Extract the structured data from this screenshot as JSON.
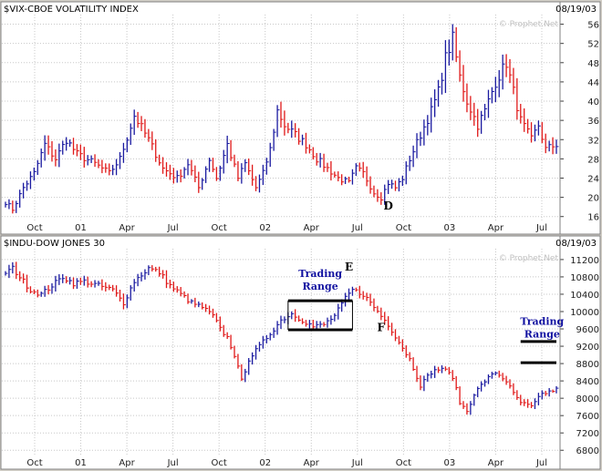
{
  "chart_data": [
    {
      "type": "ohlc",
      "title": "$VIX-CBOE VOLATILITY INDEX",
      "date": "08/19/03",
      "watermark": "© Prophet.Net",
      "x_tick_labels": [
        "Oct",
        "01",
        "Apr",
        "Jul",
        "Oct",
        "02",
        "Apr",
        "Jul",
        "Oct",
        "03",
        "Apr",
        "Jul"
      ],
      "y_ticks": [
        16,
        20,
        24,
        28,
        32,
        36,
        40,
        44,
        48,
        52,
        56
      ],
      "ylim": [
        15,
        58
      ],
      "bar_count": 155,
      "anchors": [
        [
          0,
          19
        ],
        [
          2,
          17.5
        ],
        [
          5,
          22
        ],
        [
          8,
          25
        ],
        [
          11,
          31
        ],
        [
          14,
          28
        ],
        [
          17,
          32
        ],
        [
          20,
          29
        ],
        [
          25,
          27
        ],
        [
          29,
          25
        ],
        [
          32,
          28
        ],
        [
          36,
          37
        ],
        [
          40,
          32
        ],
        [
          44,
          26
        ],
        [
          48,
          24
        ],
        [
          51,
          27
        ],
        [
          54,
          22
        ],
        [
          57,
          28
        ],
        [
          59,
          24
        ],
        [
          62,
          31
        ],
        [
          65,
          24
        ],
        [
          67,
          27
        ],
        [
          70,
          22
        ],
        [
          72,
          25
        ],
        [
          74,
          30
        ],
        [
          76,
          38
        ],
        [
          78,
          35
        ],
        [
          81,
          33
        ],
        [
          84,
          31
        ],
        [
          87,
          28
        ],
        [
          90,
          26
        ],
        [
          93,
          24
        ],
        [
          96,
          23
        ],
        [
          98,
          26
        ],
        [
          100,
          25
        ],
        [
          103,
          21
        ],
        [
          105,
          20
        ],
        [
          107,
          23
        ],
        [
          109,
          22
        ],
        [
          111,
          24
        ],
        [
          113,
          28
        ],
        [
          116,
          33
        ],
        [
          119,
          38
        ],
        [
          121,
          42
        ],
        [
          123,
          49
        ],
        [
          125,
          53
        ],
        [
          127,
          45
        ],
        [
          129,
          40
        ],
        [
          132,
          35
        ],
        [
          134,
          38
        ],
        [
          137,
          44
        ],
        [
          140,
          48
        ],
        [
          142,
          42
        ],
        [
          144,
          36
        ],
        [
          147,
          32
        ],
        [
          149,
          35
        ],
        [
          151,
          30
        ],
        [
          154,
          31
        ]
      ],
      "annotations": [
        {
          "text": "D",
          "bar": 107,
          "value": 17.5
        }
      ]
    },
    {
      "type": "ohlc",
      "title": "$INDU-DOW JONES 30",
      "date": "08/19/03",
      "watermark": "© Prophet.Net",
      "x_tick_labels": [
        "Oct",
        "01",
        "Apr",
        "Jul",
        "Oct",
        "02",
        "Apr",
        "Jul",
        "Oct",
        "03",
        "Apr",
        "Jul"
      ],
      "y_ticks": [
        6800,
        7200,
        7600,
        8000,
        8400,
        8800,
        9200,
        9600,
        10000,
        10400,
        10800,
        11200
      ],
      "ylim": [
        6700,
        11450
      ],
      "bar_count": 155,
      "anchors": [
        [
          0,
          10900
        ],
        [
          2,
          11000
        ],
        [
          4,
          10800
        ],
        [
          7,
          10500
        ],
        [
          10,
          10400
        ],
        [
          13,
          10600
        ],
        [
          16,
          10800
        ],
        [
          19,
          10650
        ],
        [
          22,
          10700
        ],
        [
          26,
          10600
        ],
        [
          30,
          10500
        ],
        [
          33,
          10200
        ],
        [
          36,
          10700
        ],
        [
          40,
          11000
        ],
        [
          43,
          10900
        ],
        [
          46,
          10600
        ],
        [
          49,
          10400
        ],
        [
          52,
          10200
        ],
        [
          55,
          10100
        ],
        [
          58,
          9900
        ],
        [
          60,
          9600
        ],
        [
          62,
          9400
        ],
        [
          64,
          9000
        ],
        [
          66,
          8400
        ],
        [
          68,
          8900
        ],
        [
          71,
          9200
        ],
        [
          74,
          9500
        ],
        [
          77,
          9800
        ],
        [
          80,
          9950
        ],
        [
          83,
          9800
        ],
        [
          86,
          9650
        ],
        [
          89,
          9700
        ],
        [
          92,
          9900
        ],
        [
          95,
          10300
        ],
        [
          97,
          10500
        ],
        [
          100,
          10400
        ],
        [
          103,
          10100
        ],
        [
          105,
          9900
        ],
        [
          107,
          9700
        ],
        [
          110,
          9300
        ],
        [
          113,
          8900
        ],
        [
          116,
          8300
        ],
        [
          119,
          8600
        ],
        [
          122,
          8700
        ],
        [
          125,
          8500
        ],
        [
          127,
          7900
        ],
        [
          129,
          7700
        ],
        [
          131,
          8100
        ],
        [
          134,
          8400
        ],
        [
          137,
          8600
        ],
        [
          140,
          8400
        ],
        [
          142,
          8100
        ],
        [
          144,
          7900
        ],
        [
          147,
          7800
        ],
        [
          150,
          8100
        ],
        [
          154,
          8200
        ]
      ],
      "annotations": [
        {
          "text": "Trading",
          "bar": 88,
          "value": 10800
        },
        {
          "text": "Range",
          "bar": 88,
          "value": 10500
        },
        {
          "text": "E",
          "bar": 96,
          "value": 10950
        },
        {
          "text": "F",
          "bar": 105,
          "value": 9550
        },
        {
          "text": "Trading",
          "bar": 150,
          "value": 9700
        },
        {
          "text": "Range",
          "bar": 150,
          "value": 9400
        }
      ]
    }
  ]
}
